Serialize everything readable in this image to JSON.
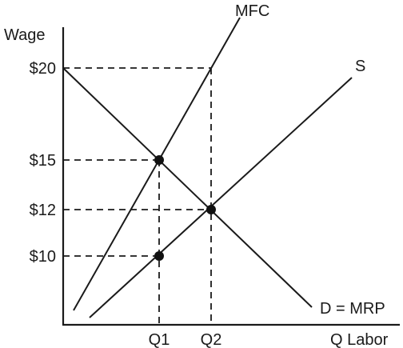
{
  "axes": {
    "y_label": "Wage",
    "x_label": "Q Labor",
    "y_ticks": [
      "$20",
      "$15",
      "$12",
      "$10"
    ],
    "x_ticks": [
      "Q1",
      "Q2"
    ]
  },
  "curves": {
    "mfc_label": "MFC",
    "supply_label": "S",
    "demand_label": "D = MRP"
  },
  "colors": {
    "ink": "#1a1a1a"
  }
}
